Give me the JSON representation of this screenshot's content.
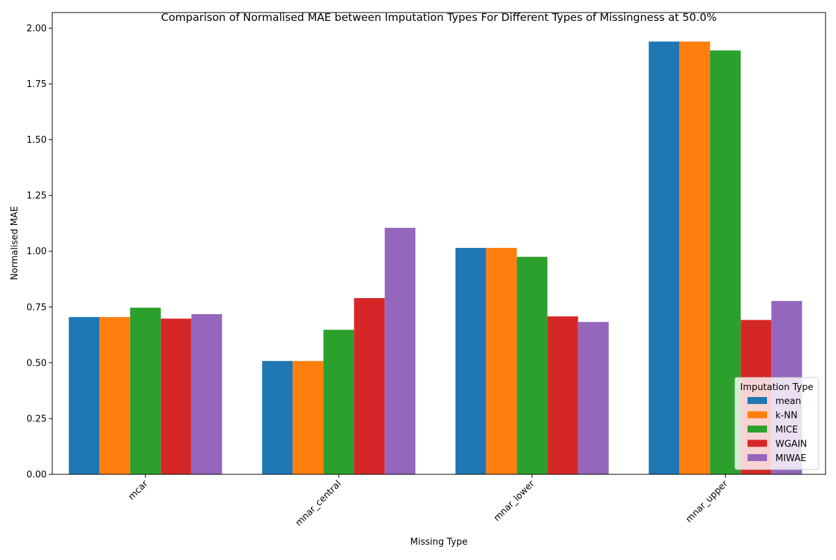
{
  "chart_data": {
    "type": "bar",
    "title": "Comparison of Normalised MAE between Imputation Types For Different Types of Missingness at 50.0%",
    "xlabel": "Missing Type",
    "ylabel": "Normalised MAE",
    "categories": [
      "mcar",
      "mnar_central",
      "mnar_lower",
      "mnar_upper"
    ],
    "ylim": [
      0,
      2.07
    ],
    "yticks": [
      "0.00",
      "0.25",
      "0.50",
      "0.75",
      "1.00",
      "1.25",
      "1.50",
      "1.75",
      "2.00"
    ],
    "grid": false,
    "legend": {
      "title": "Imputation Type",
      "placement": "lower-right"
    },
    "series": [
      {
        "name": "mean",
        "color": "#1f77b4",
        "values": [
          0.705,
          0.508,
          1.015,
          1.94
        ]
      },
      {
        "name": "k-NN",
        "color": "#ff7f0e",
        "values": [
          0.705,
          0.508,
          1.015,
          1.94
        ]
      },
      {
        "name": "MICE",
        "color": "#2ca02c",
        "values": [
          0.747,
          0.648,
          0.975,
          1.9
        ]
      },
      {
        "name": "WGAIN",
        "color": "#d62728",
        "values": [
          0.698,
          0.79,
          0.708,
          0.692
        ]
      },
      {
        "name": "MIWAE",
        "color": "#9467bd",
        "values": [
          0.718,
          1.105,
          0.683,
          0.777
        ]
      }
    ]
  }
}
